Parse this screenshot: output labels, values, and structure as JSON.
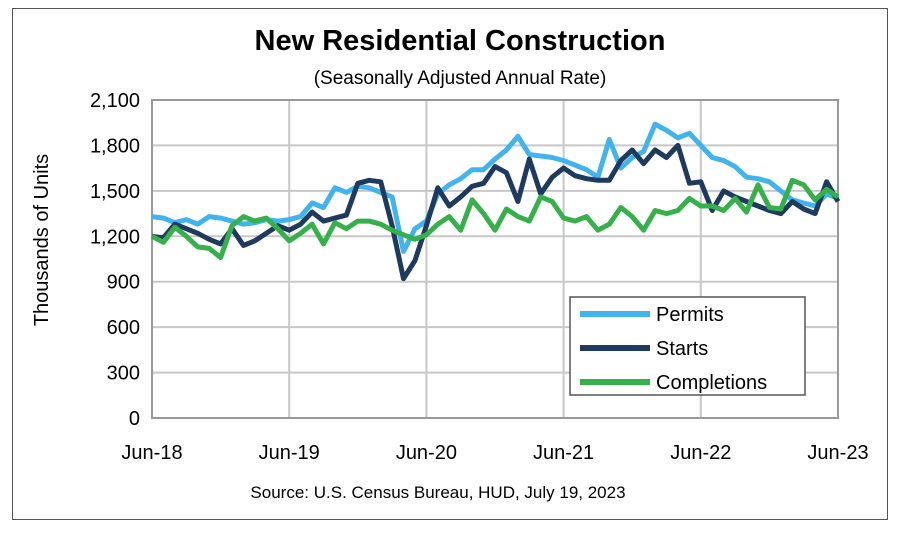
{
  "chart_data": {
    "type": "line",
    "title": "New Residential Construction",
    "subtitle": "(Seasonally Adjusted Annual Rate)",
    "ylabel": "Thousands of Units",
    "xlabel": "",
    "source": "Source:  U.S. Census Bureau, HUD, July 19, 2023",
    "ylim": [
      0,
      2100
    ],
    "y_ticks": [
      "0",
      "300",
      "600",
      "900",
      "1,200",
      "1,500",
      "1,800",
      "2,100"
    ],
    "y_tick_values": [
      0,
      300,
      600,
      900,
      1200,
      1500,
      1800,
      2100
    ],
    "x_ticks": [
      "Jun-18",
      "Jun-19",
      "Jun-20",
      "Jun-21",
      "Jun-22",
      "Jun-23"
    ],
    "x_start": "Jun-2018",
    "x_end": "Jun-2023",
    "x_frequency": "monthly",
    "grid": true,
    "legend_position": "bottom-right",
    "series": [
      {
        "name": "Permits",
        "color": "#41b3ef",
        "values": [
          1330,
          1320,
          1290,
          1310,
          1280,
          1330,
          1320,
          1300,
          1280,
          1290,
          1310,
          1300,
          1310,
          1330,
          1420,
          1390,
          1520,
          1490,
          1530,
          1520,
          1490,
          1460,
          1100,
          1250,
          1300,
          1480,
          1540,
          1580,
          1640,
          1640,
          1710,
          1770,
          1860,
          1740,
          1730,
          1720,
          1700,
          1670,
          1640,
          1590,
          1840,
          1650,
          1720,
          1760,
          1940,
          1900,
          1850,
          1880,
          1800,
          1720,
          1700,
          1660,
          1590,
          1580,
          1560,
          1500,
          1440,
          1420,
          1400,
          1480,
          1450
        ]
      },
      {
        "name": "Starts",
        "color": "#1f3a5f",
        "values": [
          1200,
          1190,
          1280,
          1250,
          1220,
          1180,
          1150,
          1250,
          1140,
          1170,
          1220,
          1270,
          1240,
          1280,
          1360,
          1300,
          1320,
          1340,
          1550,
          1570,
          1560,
          1270,
          920,
          1040,
          1270,
          1520,
          1400,
          1460,
          1530,
          1550,
          1660,
          1620,
          1430,
          1710,
          1480,
          1590,
          1650,
          1600,
          1580,
          1570,
          1570,
          1700,
          1770,
          1680,
          1770,
          1720,
          1800,
          1550,
          1560,
          1370,
          1500,
          1460,
          1430,
          1400,
          1370,
          1350,
          1430,
          1380,
          1350,
          1560,
          1430
        ]
      },
      {
        "name": "Completions",
        "color": "#36b04b",
        "values": [
          1200,
          1160,
          1260,
          1200,
          1130,
          1120,
          1060,
          1270,
          1330,
          1300,
          1320,
          1250,
          1170,
          1220,
          1280,
          1150,
          1290,
          1250,
          1300,
          1300,
          1280,
          1240,
          1210,
          1180,
          1210,
          1280,
          1330,
          1240,
          1440,
          1350,
          1240,
          1380,
          1330,
          1300,
          1460,
          1430,
          1320,
          1300,
          1330,
          1240,
          1280,
          1390,
          1330,
          1240,
          1370,
          1350,
          1370,
          1450,
          1400,
          1400,
          1370,
          1450,
          1360,
          1540,
          1390,
          1380,
          1570,
          1540,
          1440,
          1510,
          1460
        ]
      }
    ]
  }
}
